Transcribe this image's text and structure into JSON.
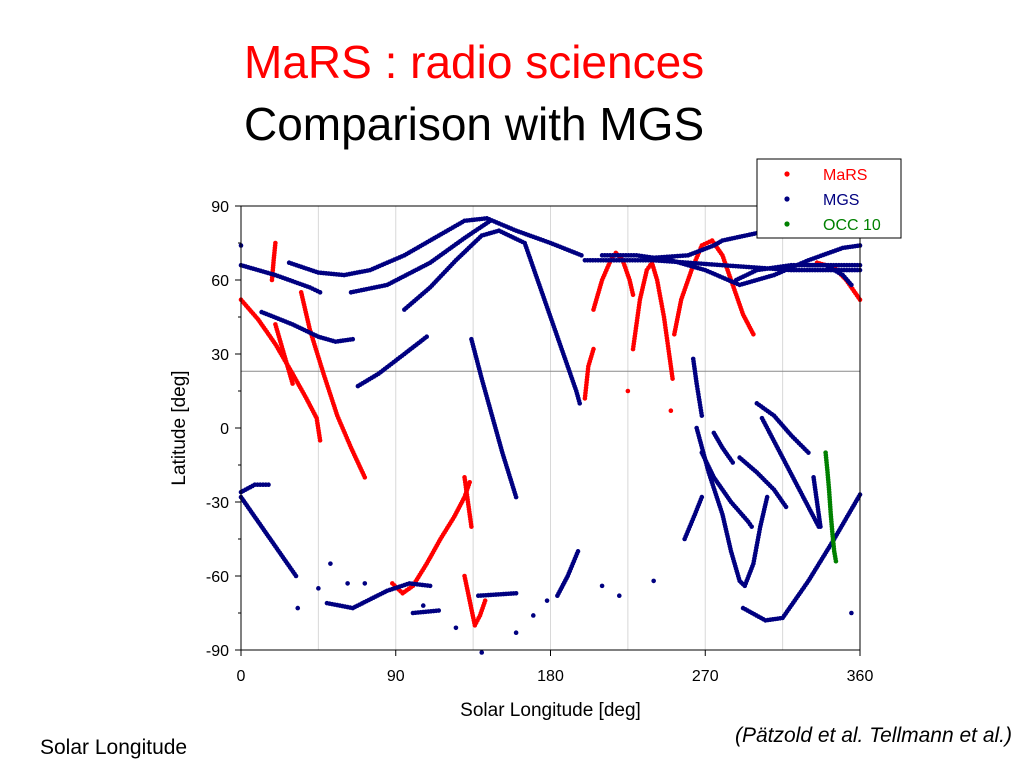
{
  "slide": {
    "title_line1": "MaRS : radio sciences",
    "title_line2": "Comparison with MGS",
    "footnote": "Solar Longitude",
    "citation": "(Pätzold et al. Tellmann et al.)",
    "colors": {
      "title_accent": "#ff0000",
      "text": "#000000"
    }
  },
  "chart_data": {
    "type": "scatter",
    "title": "",
    "xlabel": "Solar Longitude [deg]",
    "ylabel": "Latitude [deg]",
    "xlim": [
      0,
      360
    ],
    "ylim": [
      -90,
      90
    ],
    "xticks": [
      0,
      90,
      180,
      270,
      360
    ],
    "yticks": [
      90,
      60,
      30,
      0,
      -30,
      -60,
      -90
    ],
    "grid": "vertical minor lines",
    "reference_line_y": 23,
    "legend_position": "top-right",
    "series": [
      {
        "name": "MaRS",
        "color": "#ff0000",
        "segments": [
          [
            [
              0,
              52
            ],
            [
              10,
              44
            ],
            [
              20,
              34
            ],
            [
              30,
              22
            ],
            [
              38,
              12
            ],
            [
              44,
              4
            ],
            [
              46,
              -5
            ]
          ],
          [
            [
              18,
              60
            ],
            [
              19,
              68
            ],
            [
              20,
              75
            ]
          ],
          [
            [
              35,
              55
            ],
            [
              40,
              40
            ],
            [
              48,
              22
            ],
            [
              56,
              5
            ],
            [
              64,
              -8
            ],
            [
              72,
              -20
            ]
          ],
          [
            [
              20,
              42
            ],
            [
              25,
              30
            ],
            [
              30,
              18
            ]
          ],
          [
            [
              88,
              -63
            ],
            [
              94,
              -67
            ],
            [
              100,
              -64
            ],
            [
              108,
              -55
            ],
            [
              116,
              -45
            ],
            [
              124,
              -36
            ],
            [
              130,
              -28
            ],
            [
              133,
              -22
            ]
          ],
          [
            [
              130,
              -20
            ],
            [
              131,
              -25
            ],
            [
              132,
              -30
            ],
            [
              133,
              -35
            ],
            [
              134,
              -40
            ]
          ],
          [
            [
              130,
              -60
            ],
            [
              133,
              -70
            ],
            [
              136,
              -80
            ],
            [
              139,
              -76
            ],
            [
              142,
              -70
            ]
          ],
          [
            [
              200,
              12
            ],
            [
              202,
              25
            ],
            [
              205,
              32
            ]
          ],
          [
            [
              205,
              48
            ],
            [
              210,
              60
            ],
            [
              215,
              68
            ],
            [
              218,
              71
            ],
            [
              222,
              68
            ],
            [
              226,
              60
            ],
            [
              228,
              54
            ]
          ],
          [
            [
              225,
              15
            ]
          ],
          [
            [
              228,
              32
            ],
            [
              232,
              52
            ],
            [
              236,
              64
            ],
            [
              239,
              67
            ],
            [
              242,
              60
            ],
            [
              246,
              45
            ],
            [
              249,
              30
            ],
            [
              251,
              20
            ]
          ],
          [
            [
              250,
              7
            ]
          ],
          [
            [
              252,
              38
            ],
            [
              256,
              52
            ],
            [
              262,
              64
            ],
            [
              268,
              74
            ],
            [
              274,
              76
            ],
            [
              280,
              70
            ],
            [
              286,
              58
            ],
            [
              292,
              46
            ],
            [
              298,
              38
            ]
          ],
          [
            [
              335,
              67
            ],
            [
              345,
              65
            ],
            [
              352,
              60
            ],
            [
              360,
              52
            ]
          ]
        ]
      },
      {
        "name": "MGS",
        "color": "#000080",
        "segments": [
          [
            [
              0,
              66
            ],
            [
              20,
              62
            ],
            [
              40,
              57
            ],
            [
              46,
              55
            ]
          ],
          [
            [
              12,
              47
            ],
            [
              30,
              42
            ],
            [
              45,
              37
            ],
            [
              55,
              35
            ],
            [
              65,
              36
            ]
          ],
          [
            [
              28,
              67
            ],
            [
              45,
              63
            ],
            [
              60,
              62
            ],
            [
              75,
              64
            ],
            [
              95,
              70
            ],
            [
              115,
              78
            ],
            [
              130,
              84
            ],
            [
              143,
              85
            ],
            [
              160,
              80
            ],
            [
              180,
              75
            ],
            [
              198,
              70
            ]
          ],
          [
            [
              64,
              55
            ],
            [
              85,
              58
            ],
            [
              110,
              67
            ],
            [
              130,
              77
            ],
            [
              145,
              84
            ]
          ],
          [
            [
              95,
              48
            ],
            [
              110,
              57
            ],
            [
              125,
              68
            ],
            [
              140,
              78
            ],
            [
              150,
              80
            ],
            [
              165,
              75
            ],
            [
              175,
              55
            ],
            [
              185,
              35
            ],
            [
              195,
              15
            ],
            [
              197,
              10
            ]
          ],
          [
            [
              68,
              17
            ],
            [
              80,
              22
            ],
            [
              95,
              30
            ],
            [
              108,
              37
            ]
          ],
          [
            [
              134,
              36
            ],
            [
              140,
              20
            ],
            [
              146,
              5
            ],
            [
              152,
              -10
            ],
            [
              160,
              -28
            ]
          ],
          [
            [
              0,
              -26
            ],
            [
              8,
              -23
            ],
            [
              16,
              -23
            ]
          ],
          [
            [
              0,
              -28
            ],
            [
              10,
              -38
            ],
            [
              20,
              -48
            ],
            [
              32,
              -60
            ]
          ],
          [
            [
              50,
              -71
            ],
            [
              65,
              -73
            ],
            [
              85,
              -66
            ],
            [
              98,
              -63
            ],
            [
              110,
              -64
            ]
          ],
          [
            [
              100,
              -75
            ],
            [
              115,
              -74
            ]
          ],
          [
            [
              138,
              -68
            ],
            [
              160,
              -67
            ]
          ],
          [
            [
              184,
              -68
            ],
            [
              190,
              -60
            ],
            [
              196,
              -50
            ]
          ],
          [
            [
              200,
              68
            ],
            [
              220,
              68
            ],
            [
              240,
              68
            ],
            [
              260,
              67
            ],
            [
              280,
              66
            ],
            [
              300,
              65
            ],
            [
              320,
              64
            ],
            [
              340,
              64
            ],
            [
              360,
              64
            ]
          ],
          [
            [
              210,
              70
            ],
            [
              230,
              70
            ],
            [
              250,
              68
            ],
            [
              270,
              64
            ],
            [
              290,
              58
            ],
            [
              310,
              62
            ],
            [
              330,
              68
            ],
            [
              350,
              73
            ],
            [
              360,
              74
            ]
          ],
          [
            [
              240,
              69
            ],
            [
              260,
              70
            ],
            [
              275,
              74
            ],
            [
              280,
              76
            ],
            [
              300,
              79
            ],
            [
              310,
              80
            ]
          ],
          [
            [
              288,
              60
            ],
            [
              300,
              64
            ],
            [
              320,
              66
            ],
            [
              340,
              66
            ],
            [
              360,
              66
            ]
          ],
          [
            [
              263,
              28
            ],
            [
              265,
              18
            ],
            [
              268,
              5
            ]
          ],
          [
            [
              265,
              0
            ],
            [
              272,
              -18
            ],
            [
              280,
              -35
            ],
            [
              285,
              -50
            ],
            [
              290,
              -62
            ],
            [
              293,
              -64
            ],
            [
              298,
              -55
            ],
            [
              302,
              -40
            ],
            [
              306,
              -28
            ]
          ],
          [
            [
              268,
              -10
            ],
            [
              275,
              -20
            ],
            [
              285,
              -30
            ],
            [
              295,
              -38
            ],
            [
              297,
              -40
            ]
          ],
          [
            [
              275,
              -2
            ],
            [
              280,
              -8
            ],
            [
              286,
              -14
            ]
          ],
          [
            [
              258,
              -45
            ],
            [
              264,
              -35
            ],
            [
              268,
              -28
            ]
          ],
          [
            [
              292,
              -73
            ],
            [
              305,
              -78
            ],
            [
              315,
              -77
            ],
            [
              330,
              -62
            ],
            [
              345,
              -45
            ],
            [
              360,
              -27
            ]
          ],
          [
            [
              300,
              10
            ],
            [
              310,
              5
            ],
            [
              320,
              -3
            ],
            [
              330,
              -10
            ]
          ],
          [
            [
              290,
              -12
            ],
            [
              300,
              -18
            ],
            [
              310,
              -25
            ],
            [
              317,
              -32
            ]
          ],
          [
            [
              303,
              4
            ],
            [
              315,
              -12
            ],
            [
              327,
              -28
            ],
            [
              336,
              -40
            ]
          ],
          [
            [
              330,
              66
            ],
            [
              340,
              66
            ],
            [
              350,
              62
            ],
            [
              355,
              58
            ]
          ],
          [
            [
              333,
              -20
            ],
            [
              335,
              -30
            ],
            [
              337,
              -40
            ]
          ],
          [
            [
              0,
              74
            ]
          ],
          [
            [
              33,
              -73
            ]
          ],
          [
            [
              52,
              -55
            ]
          ],
          [
            [
              45,
              -65
            ]
          ],
          [
            [
              62,
              -63
            ]
          ],
          [
            [
              72,
              -63
            ]
          ],
          [
            [
              106,
              -72
            ]
          ],
          [
            [
              125,
              -81
            ]
          ],
          [
            [
              140,
              -91
            ]
          ],
          [
            [
              160,
              -83
            ]
          ],
          [
            [
              170,
              -76
            ]
          ],
          [
            [
              178,
              -70
            ]
          ],
          [
            [
              210,
              -64
            ]
          ],
          [
            [
              220,
              -68
            ]
          ],
          [
            [
              240,
              -62
            ]
          ],
          [
            [
              355,
              -75
            ]
          ]
        ]
      },
      {
        "name": "OCC 10",
        "color": "#008000",
        "segments": [
          [
            [
              340,
              -10
            ],
            [
              341,
              -17
            ],
            [
              342,
              -25
            ],
            [
              343,
              -35
            ],
            [
              344,
              -43
            ],
            [
              345,
              -50
            ],
            [
              346,
              -54
            ]
          ]
        ]
      }
    ]
  }
}
